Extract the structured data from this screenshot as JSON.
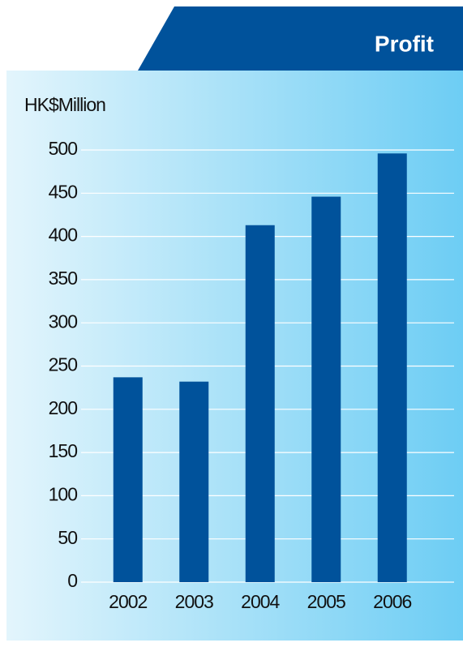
{
  "chart_data": {
    "type": "bar",
    "title": "Profit",
    "y_label": "HK$Million",
    "categories": [
      "2002",
      "2003",
      "2004",
      "2005",
      "2006"
    ],
    "values": [
      237,
      232,
      413,
      446,
      496
    ],
    "color": "#00529b",
    "ylim": [
      0,
      500
    ],
    "yticks": [
      0,
      50,
      100,
      150,
      200,
      250,
      300,
      350,
      400,
      450,
      500
    ],
    "grid": true
  }
}
